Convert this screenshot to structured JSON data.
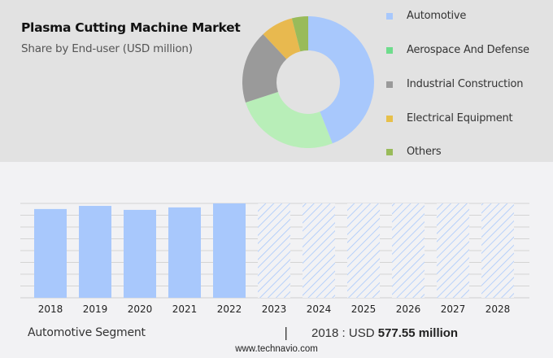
{
  "header": {
    "title": "Plasma Cutting Machine Market",
    "subtitle": "Share by End-user (USD million)"
  },
  "legend": [
    {
      "label": "Automotive",
      "color": "#a8c8fc"
    },
    {
      "label": "Aerospace And Defense",
      "color": "#6edc8c"
    },
    {
      "label": "Industrial Construction",
      "color": "#9a9a9a"
    },
    {
      "label": "Electrical Equipment",
      "color": "#e7c04a"
    },
    {
      "label": "Others",
      "color": "#99bb5a"
    }
  ],
  "footer": {
    "segment_label": "Automotive Segment",
    "divider": "|",
    "value_prefix": "2018 : USD ",
    "value_bold": "577.55 million",
    "source": "www.technavio.com"
  },
  "chart_data": [
    {
      "type": "pie",
      "title": "Plasma Cutting Machine Market",
      "subtitle": "Share by End-user (USD million)",
      "donut": true,
      "categories": [
        "Automotive",
        "Aerospace And Defense",
        "Industrial Construction",
        "Electrical Equipment",
        "Others"
      ],
      "values": [
        44,
        26,
        18,
        8,
        4
      ],
      "colors": [
        "#a8c8fc",
        "#b8eeb8",
        "#9a9a9a",
        "#e8b94f",
        "#99bb5a"
      ],
      "legend_position": "right"
    },
    {
      "type": "bar",
      "title": "Automotive Segment",
      "categories": [
        "2018",
        "2019",
        "2020",
        "2021",
        "2022",
        "2023",
        "2024",
        "2025",
        "2026",
        "2027",
        "2028"
      ],
      "values": [
        577.55,
        598,
        572,
        588,
        614,
        null,
        null,
        null,
        null,
        null,
        null
      ],
      "forecast": [
        false,
        false,
        false,
        false,
        false,
        true,
        true,
        true,
        true,
        true,
        true
      ],
      "annotation": "2018 : USD 577.55 million",
      "grid": true,
      "bar_color": "#a8c8fc",
      "forecast_style": "hatched"
    }
  ]
}
